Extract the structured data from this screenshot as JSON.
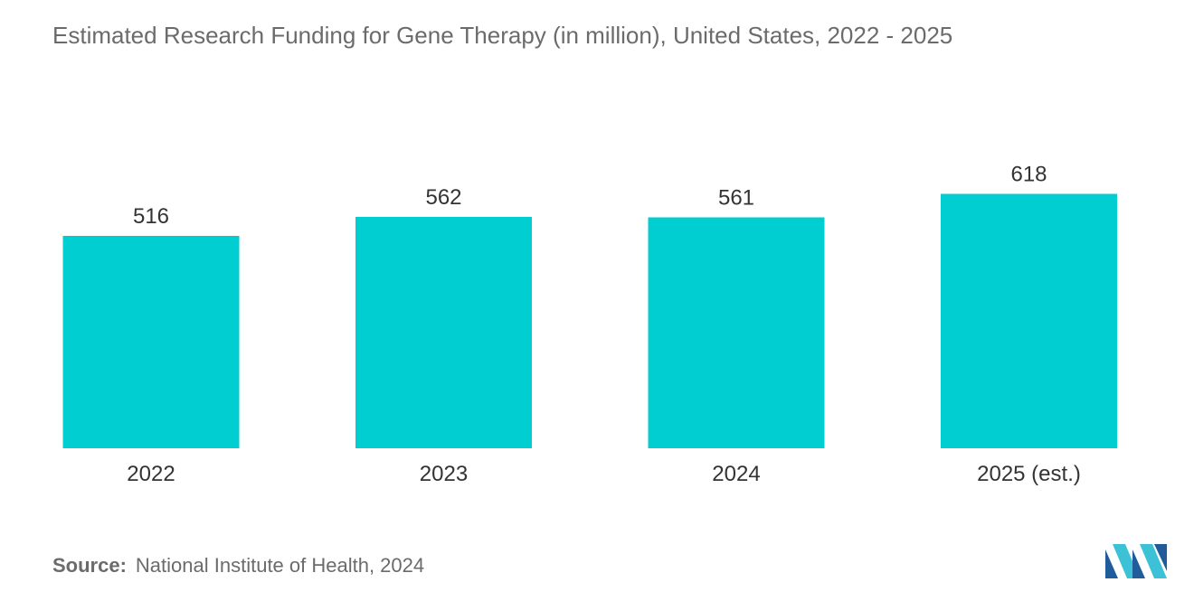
{
  "chart_data": {
    "type": "bar",
    "title": "Estimated Research Funding for Gene Therapy (in million), United States, 2022 - 2025",
    "categories": [
      "2022",
      "2023",
      "2024",
      "2025 (est.)"
    ],
    "values": [
      516,
      562,
      561,
      618
    ],
    "data_labels": [
      "516",
      "562",
      "561",
      "618"
    ],
    "xlabel": "",
    "ylabel": "",
    "ylim": [
      0,
      680
    ],
    "grid": false,
    "legend": "none",
    "bar_color": "#00ced1"
  },
  "source": {
    "label": "Source:",
    "text": "National Institute of Health, 2024"
  },
  "colors": {
    "title": "#6b6b6b",
    "bars": "#00ced1",
    "logo_dark": "#1f5c99",
    "logo_light": "#3cc1d6"
  },
  "logo": {
    "icon": "mordor-intelligence-logo-icon"
  }
}
